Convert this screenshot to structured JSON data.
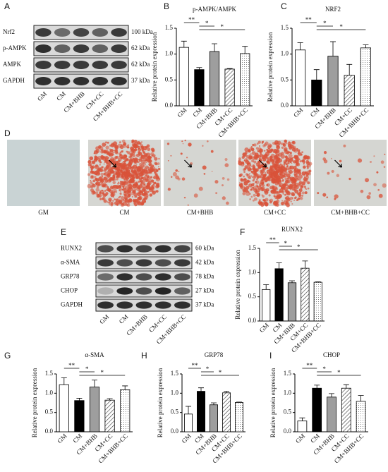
{
  "panel_labels": [
    "A",
    "B",
    "C",
    "D",
    "E",
    "F",
    "G",
    "H",
    "I"
  ],
  "blots": [
    {
      "proteins": [
        "Nrf2",
        "p-AMPK",
        "AMPK",
        "GAPDH"
      ],
      "sizes": [
        "100 kDa",
        "62 kDa",
        "62 kDa",
        "37 kDa"
      ],
      "lanes": [
        "GM",
        "CM",
        "CM+BHB",
        "CM+CC",
        "CM+BHB+CC"
      ]
    },
    {
      "proteins": [
        "RUNX2",
        "α-SMA",
        "GRP78",
        "CHOP",
        "GAPDH"
      ],
      "sizes": [
        "60 kDa",
        "42 kDa",
        "78 kDa",
        "27 kDa",
        "37 kDa"
      ],
      "lanes": [
        "GM",
        "CM",
        "CM+BHB",
        "CM+CC",
        "CM+BHB+CC"
      ]
    }
  ],
  "micrographs": {
    "labels": [
      "GM",
      "CM",
      "CM+BHB",
      "CM+CC",
      "CM+BHB+CC"
    ]
  },
  "chart_data": [
    {
      "type": "bar",
      "title": "p-AMPK/AMPK",
      "ylabel": "Relative protein expression",
      "categories": [
        "GM",
        "CM",
        "CM+BHB",
        "CM+CC",
        "CM+BHB+CC"
      ],
      "values": [
        1.13,
        0.7,
        1.05,
        0.71,
        1.01
      ],
      "errors": [
        0.12,
        0.04,
        0.15,
        0.01,
        0.14
      ],
      "bar_styles": [
        "white",
        "black",
        "gray",
        "hatch",
        "dots"
      ],
      "ylim": [
        0,
        1.5
      ],
      "yticks": [
        {
          "value": 0,
          "label": "0.0"
        },
        0.5,
        {
          "value": 1,
          "label": "1.0"
        },
        1.5
      ],
      "annotations": [
        "**",
        "*",
        "*"
      ]
    },
    {
      "type": "bar",
      "title": "NRF2",
      "ylabel": "Relative protein expression",
      "categories": [
        "GM",
        "CM",
        "CM+BHB",
        "CM+CC",
        "CM+BHB+CC"
      ],
      "values": [
        1.08,
        0.5,
        0.96,
        0.59,
        1.12
      ],
      "errors": [
        0.14,
        0.2,
        0.28,
        0.21,
        0.06
      ],
      "bar_styles": [
        "white",
        "black",
        "gray",
        "hatch",
        "dots"
      ],
      "ylim": [
        0,
        1.5
      ],
      "yticks": [
        {
          "value": 0,
          "label": "0.0"
        },
        0.5,
        {
          "value": 1,
          "label": "1.0"
        },
        1.5
      ],
      "annotations": [
        "**",
        "*",
        "*"
      ]
    },
    {
      "type": "bar",
      "title": "RUNX2",
      "ylabel": "Relative protein expression",
      "categories": [
        "GM",
        "CM",
        "CM+BHB",
        "CM+CC",
        "CM+BHB+CC"
      ],
      "values": [
        0.65,
        1.08,
        0.79,
        1.09,
        0.8
      ],
      "errors": [
        0.1,
        0.12,
        0.04,
        0.15,
        0.01
      ],
      "bar_styles": [
        "white",
        "black",
        "gray",
        "hatch",
        "dots"
      ],
      "ylim": [
        0,
        1.5
      ],
      "yticks": [
        {
          "value": 0,
          "label": "0.0"
        },
        0.5,
        {
          "value": 1,
          "label": "1.0"
        },
        1.5
      ],
      "annotations": [
        "**",
        "*",
        "*"
      ]
    },
    {
      "type": "bar",
      "title": "α-SMA",
      "ylabel": "Relative protein expression",
      "categories": [
        "GM",
        "CM",
        "CM+BHB",
        "CM+CC",
        "CM+BHB+CC"
      ],
      "values": [
        1.22,
        0.81,
        1.16,
        0.82,
        1.09
      ],
      "errors": [
        0.18,
        0.06,
        0.18,
        0.04,
        0.1
      ],
      "bar_styles": [
        "white",
        "black",
        "gray",
        "hatch",
        "dots"
      ],
      "ylim": [
        0,
        1.5
      ],
      "yticks": [
        {
          "value": 0,
          "label": "0.0"
        },
        0.5,
        {
          "value": 1,
          "label": "1.0"
        },
        1.5
      ],
      "annotations": [
        "**",
        "*",
        "*"
      ]
    },
    {
      "type": "bar",
      "title": "GRP78",
      "ylabel": "Relative protein expression",
      "categories": [
        "GM",
        "CM",
        "CM+BHB",
        "CM+CC",
        "CM+BHB+CC"
      ],
      "values": [
        0.46,
        1.05,
        0.7,
        1.01,
        0.76
      ],
      "errors": [
        0.2,
        0.09,
        0.05,
        0.04,
        0.01
      ],
      "bar_styles": [
        "white",
        "black",
        "gray",
        "hatch",
        "dots"
      ],
      "ylim": [
        0,
        1.5
      ],
      "yticks": [
        {
          "value": 0,
          "label": "0.0"
        },
        0.5,
        {
          "value": 1,
          "label": "1.0"
        },
        1.5
      ],
      "annotations": [
        "**",
        "*",
        "*"
      ]
    },
    {
      "type": "bar",
      "title": "CHOP",
      "ylabel": "Relative protein expression",
      "categories": [
        "GM",
        "CM",
        "CM+BHB",
        "CM+CC",
        "CM+BHB+CC"
      ],
      "values": [
        0.28,
        1.13,
        0.9,
        1.13,
        0.79
      ],
      "errors": [
        0.08,
        0.08,
        0.09,
        0.09,
        0.15
      ],
      "bar_styles": [
        "white",
        "black",
        "gray",
        "hatch",
        "dots"
      ],
      "ylim": [
        0,
        1.5
      ],
      "yticks": [
        {
          "value": 0,
          "label": "0.0"
        },
        0.5,
        {
          "value": 1,
          "label": "1.0"
        },
        1.5
      ],
      "annotations": [
        "**",
        "*",
        "*"
      ]
    }
  ]
}
